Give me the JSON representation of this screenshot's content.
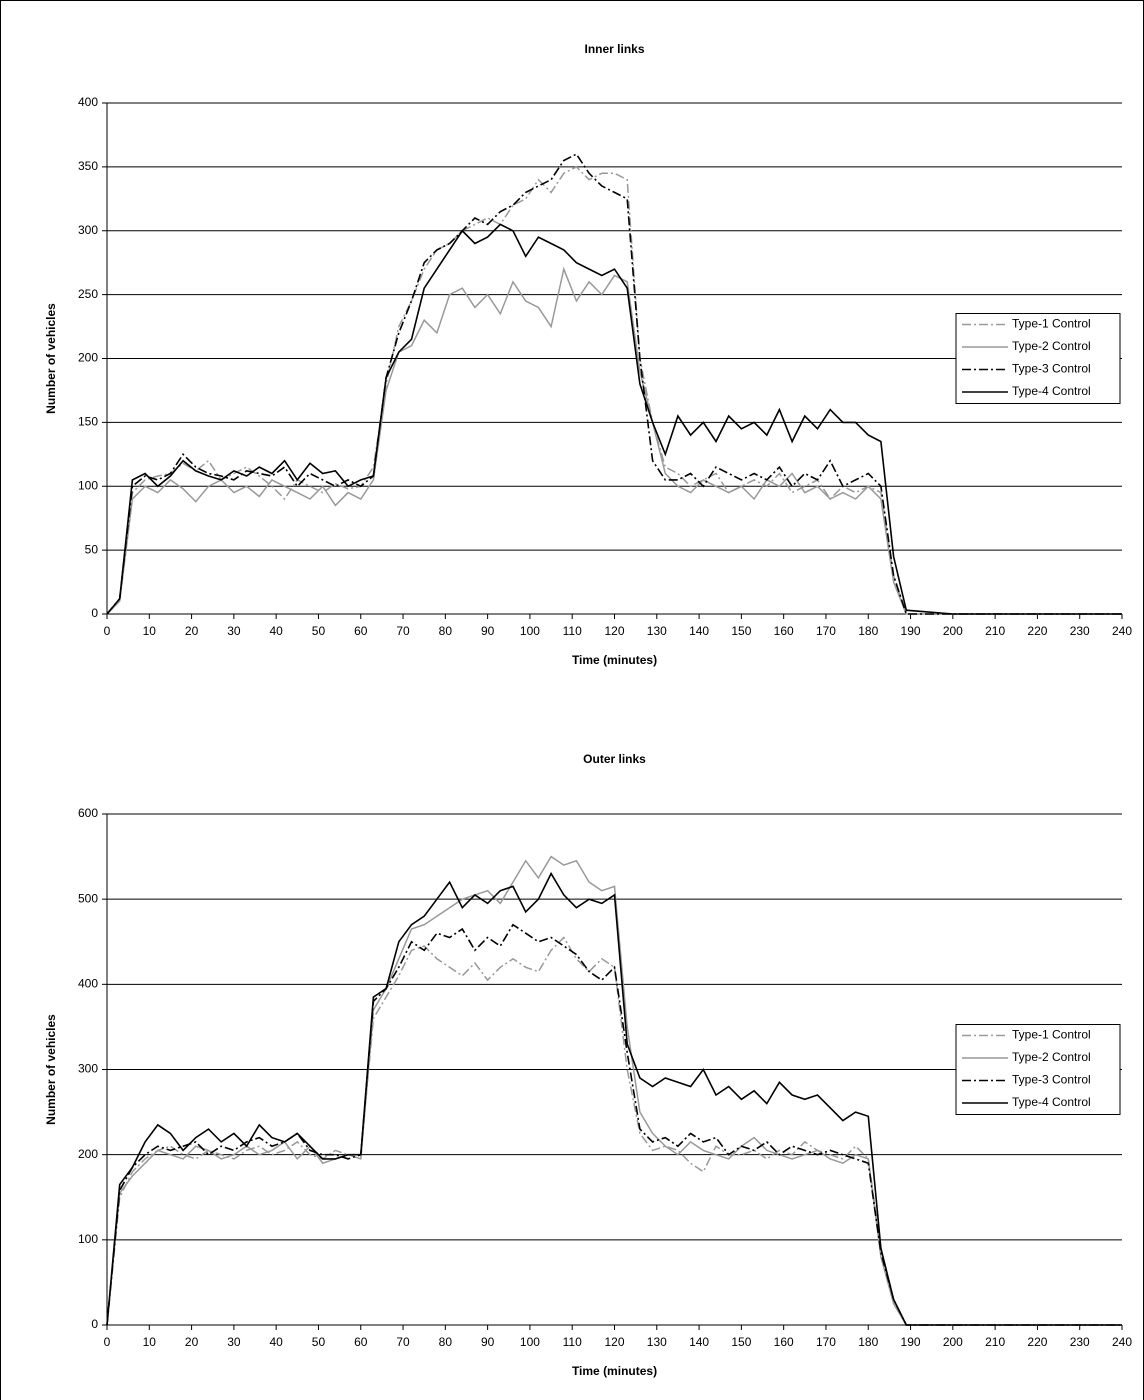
{
  "chart_data": [
    {
      "type": "line",
      "title": "Inner links",
      "xlabel": "Time (minutes)",
      "ylabel": "Number of vehicles",
      "x": [
        0,
        3,
        6,
        9,
        12,
        15,
        18,
        21,
        24,
        27,
        30,
        33,
        36,
        39,
        42,
        45,
        48,
        51,
        54,
        57,
        60,
        63,
        66,
        69,
        72,
        75,
        78,
        81,
        84,
        87,
        90,
        93,
        96,
        99,
        102,
        105,
        108,
        111,
        114,
        117,
        120,
        123,
        126,
        129,
        132,
        135,
        138,
        141,
        144,
        147,
        150,
        153,
        156,
        159,
        162,
        165,
        168,
        171,
        174,
        177,
        180,
        183,
        186,
        189,
        200,
        220,
        240
      ],
      "xlim": [
        0,
        240
      ],
      "xticks": [
        0,
        10,
        20,
        30,
        40,
        50,
        60,
        70,
        80,
        90,
        100,
        110,
        120,
        130,
        140,
        150,
        160,
        170,
        180,
        190,
        200,
        210,
        220,
        230,
        240
      ],
      "ylim": [
        0,
        400
      ],
      "yticks": [
        0,
        50,
        100,
        150,
        200,
        250,
        300,
        350,
        400
      ],
      "grid": true,
      "legend": "right",
      "series": [
        {
          "name": "Type-1 Control",
          "color": "#999999",
          "dash": "dash-dot",
          "values": [
            0,
            12,
            95,
            105,
            108,
            110,
            118,
            112,
            120,
            105,
            110,
            115,
            108,
            100,
            90,
            105,
            100,
            95,
            102,
            98,
            100,
            115,
            180,
            225,
            245,
            270,
            285,
            290,
            300,
            305,
            310,
            305,
            320,
            325,
            340,
            330,
            345,
            350,
            340,
            345,
            345,
            340,
            200,
            150,
            115,
            110,
            100,
            105,
            110,
            95,
            100,
            105,
            100,
            110,
            95,
            100,
            105,
            90,
            100,
            95,
            100,
            95,
            30,
            0,
            0,
            0,
            0
          ]
        },
        {
          "name": "Type-2 Control",
          "color": "#999999",
          "dash": "solid",
          "values": [
            0,
            10,
            90,
            100,
            95,
            105,
            98,
            88,
            100,
            105,
            95,
            100,
            92,
            105,
            100,
            95,
            90,
            100,
            85,
            95,
            90,
            105,
            175,
            205,
            210,
            230,
            220,
            250,
            255,
            240,
            250,
            235,
            260,
            245,
            240,
            225,
            270,
            245,
            260,
            250,
            265,
            260,
            190,
            150,
            110,
            100,
            95,
            105,
            100,
            95,
            100,
            90,
            105,
            100,
            110,
            95,
            100,
            90,
            95,
            90,
            100,
            90,
            25,
            0,
            0,
            0,
            0
          ]
        },
        {
          "name": "Type-3 Control",
          "color": "#000000",
          "dash": "dash-dot",
          "values": [
            0,
            12,
            100,
            108,
            105,
            110,
            125,
            115,
            110,
            108,
            105,
            112,
            110,
            108,
            115,
            100,
            110,
            105,
            100,
            105,
            100,
            108,
            185,
            220,
            245,
            275,
            285,
            290,
            300,
            310,
            305,
            315,
            320,
            330,
            335,
            340,
            355,
            360,
            345,
            335,
            330,
            325,
            200,
            120,
            105,
            105,
            110,
            100,
            115,
            110,
            105,
            110,
            105,
            115,
            100,
            110,
            105,
            120,
            100,
            105,
            110,
            100,
            30,
            0,
            0,
            0,
            0
          ]
        },
        {
          "name": "Type-4 Control",
          "color": "#000000",
          "dash": "solid",
          "values": [
            0,
            12,
            105,
            110,
            100,
            108,
            120,
            112,
            108,
            105,
            112,
            108,
            115,
            110,
            120,
            105,
            118,
            110,
            112,
            100,
            105,
            108,
            185,
            205,
            215,
            255,
            270,
            285,
            300,
            290,
            295,
            305,
            300,
            280,
            295,
            290,
            285,
            275,
            270,
            265,
            270,
            255,
            180,
            150,
            125,
            155,
            140,
            150,
            135,
            155,
            145,
            150,
            140,
            160,
            135,
            155,
            145,
            160,
            150,
            150,
            140,
            135,
            45,
            3,
            0,
            0,
            0
          ]
        }
      ]
    },
    {
      "type": "line",
      "title": "Outer links",
      "xlabel": "Time (minutes)",
      "ylabel": "Number of vehicles",
      "x": [
        0,
        3,
        6,
        9,
        12,
        15,
        18,
        21,
        24,
        27,
        30,
        33,
        36,
        39,
        42,
        45,
        48,
        51,
        54,
        57,
        60,
        63,
        66,
        69,
        72,
        75,
        78,
        81,
        84,
        87,
        90,
        93,
        96,
        99,
        102,
        105,
        108,
        111,
        114,
        117,
        120,
        123,
        126,
        129,
        132,
        135,
        138,
        141,
        144,
        147,
        150,
        153,
        156,
        159,
        162,
        165,
        168,
        171,
        174,
        177,
        180,
        183,
        186,
        189,
        200,
        220,
        240
      ],
      "xlim": [
        0,
        240
      ],
      "xticks": [
        0,
        10,
        20,
        30,
        40,
        50,
        60,
        70,
        80,
        90,
        100,
        110,
        120,
        130,
        140,
        150,
        160,
        170,
        180,
        190,
        200,
        210,
        220,
        230,
        240
      ],
      "ylim": [
        0,
        600
      ],
      "yticks": [
        0,
        100,
        200,
        300,
        400,
        500,
        600
      ],
      "grid": true,
      "legend": "right",
      "series": [
        {
          "name": "Type-1 Control",
          "color": "#999999",
          "dash": "dash-dot",
          "values": [
            0,
            150,
            180,
            195,
            205,
            210,
            200,
            195,
            205,
            200,
            195,
            205,
            210,
            200,
            205,
            215,
            200,
            195,
            205,
            200,
            200,
            360,
            385,
            410,
            440,
            445,
            430,
            420,
            410,
            425,
            405,
            420,
            430,
            420,
            415,
            440,
            455,
            430,
            415,
            430,
            420,
            300,
            225,
            205,
            210,
            205,
            190,
            180,
            210,
            200,
            200,
            205,
            195,
            205,
            200,
            215,
            205,
            200,
            195,
            210,
            195,
            90,
            30,
            0,
            0,
            0,
            0
          ]
        },
        {
          "name": "Type-2 Control",
          "color": "#999999",
          "dash": "solid",
          "values": [
            0,
            155,
            175,
            190,
            205,
            200,
            195,
            210,
            205,
            195,
            200,
            210,
            200,
            205,
            215,
            195,
            210,
            190,
            195,
            200,
            195,
            370,
            395,
            430,
            465,
            470,
            480,
            490,
            500,
            505,
            510,
            495,
            520,
            545,
            525,
            550,
            540,
            545,
            520,
            510,
            515,
            350,
            250,
            225,
            210,
            200,
            215,
            205,
            200,
            195,
            210,
            220,
            205,
            200,
            195,
            200,
            205,
            195,
            190,
            200,
            195,
            80,
            25,
            0,
            0,
            0,
            0
          ]
        },
        {
          "name": "Type-3 Control",
          "color": "#000000",
          "dash": "dash-dot",
          "values": [
            0,
            158,
            185,
            200,
            210,
            205,
            210,
            215,
            200,
            210,
            205,
            215,
            220,
            210,
            215,
            225,
            205,
            200,
            200,
            195,
            200,
            380,
            395,
            420,
            450,
            440,
            460,
            455,
            465,
            440,
            455,
            445,
            470,
            460,
            450,
            455,
            445,
            435,
            415,
            405,
            420,
            320,
            230,
            215,
            220,
            210,
            225,
            215,
            220,
            200,
            210,
            205,
            215,
            200,
            210,
            205,
            200,
            205,
            200,
            195,
            190,
            85,
            30,
            0,
            0,
            0,
            0
          ]
        },
        {
          "name": "Type-4 Control",
          "color": "#000000",
          "dash": "solid",
          "values": [
            0,
            165,
            185,
            215,
            235,
            225,
            205,
            220,
            230,
            215,
            225,
            210,
            235,
            220,
            215,
            225,
            210,
            195,
            195,
            200,
            200,
            385,
            395,
            450,
            470,
            480,
            500,
            520,
            490,
            505,
            495,
            510,
            515,
            485,
            500,
            530,
            505,
            490,
            500,
            495,
            505,
            330,
            290,
            280,
            290,
            285,
            280,
            300,
            270,
            280,
            265,
            275,
            260,
            285,
            270,
            265,
            270,
            255,
            240,
            250,
            245,
            90,
            30,
            0,
            0,
            0,
            0
          ]
        }
      ]
    }
  ]
}
